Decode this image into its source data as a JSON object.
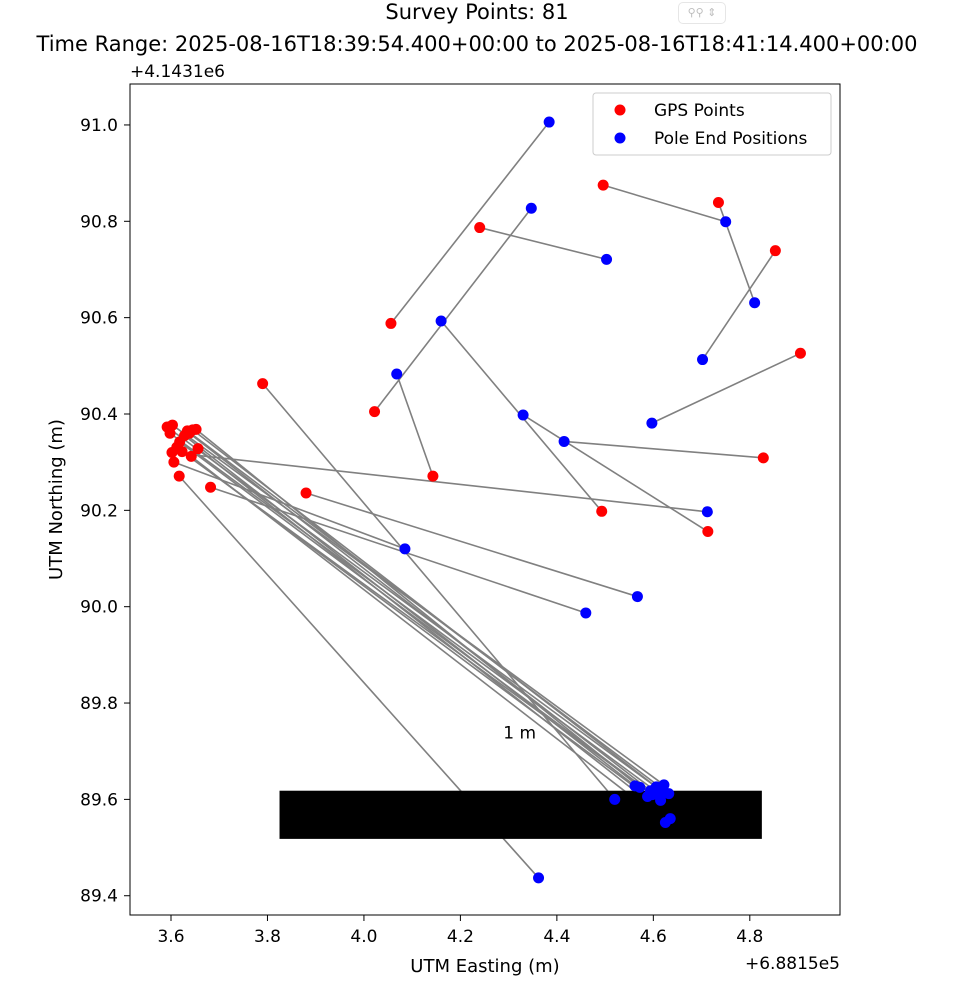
{
  "chart_data": {
    "type": "scatter",
    "title": "Survey Points: 81",
    "subtitle": "Time Range: 2025-08-16T18:39:54.400+00:00 to 2025-08-16T18:41:14.400+00:00",
    "xlabel": "UTM Easting (m)",
    "ylabel": "UTM Northing (m)",
    "x_offset_label": "+6.8815e5",
    "y_offset_label": "+4.1431e6",
    "xlim": [
      3.515,
      4.987
    ],
    "ylim": [
      89.36,
      91.085
    ],
    "xticks": [
      "3.6",
      "3.8",
      "4.0",
      "4.2",
      "4.4",
      "4.6",
      "4.8"
    ],
    "yticks": [
      "89.4",
      "89.6",
      "89.8",
      "90.0",
      "90.2",
      "90.4",
      "90.6",
      "90.8",
      "91.0"
    ],
    "legend_position": "top-right",
    "scale_bar_label": "1 m",
    "scale_bar": {
      "x": [
        3.825,
        4.825
      ],
      "y": [
        89.518,
        89.618
      ]
    },
    "colors": {
      "gps": "#ff0000",
      "pole": "#0000ff",
      "line": "#808080",
      "scale_bar": "#000000"
    },
    "series": [
      {
        "name": "GPS Points",
        "color": "#ff0000"
      },
      {
        "name": "Pole End Positions",
        "color": "#0000ff"
      }
    ],
    "pairs": [
      {
        "gps": [
          4.056,
          90.588
        ],
        "pole": [
          4.384,
          91.006
        ]
      },
      {
        "gps": [
          4.24,
          90.787
        ],
        "pole": [
          4.503,
          90.721
        ]
      },
      {
        "gps": [
          4.022,
          90.405
        ],
        "pole": [
          4.347,
          90.827
        ]
      },
      {
        "gps": [
          4.496,
          90.875
        ],
        "pole": [
          4.75,
          90.799
        ]
      },
      {
        "gps": [
          4.735,
          90.839
        ],
        "pole": [
          4.81,
          90.631
        ]
      },
      {
        "gps": [
          4.853,
          90.739
        ],
        "pole": [
          4.702,
          90.513
        ]
      },
      {
        "gps": [
          4.905,
          90.526
        ],
        "pole": [
          4.597,
          90.381
        ]
      },
      {
        "gps": [
          4.143,
          90.271
        ],
        "pole": [
          4.068,
          90.483
        ]
      },
      {
        "gps": [
          4.493,
          90.198
        ],
        "pole": [
          4.16,
          90.593
        ]
      },
      {
        "gps": [
          4.713,
          90.156
        ],
        "pole": [
          4.33,
          90.398
        ]
      },
      {
        "gps": [
          4.828,
          90.309
        ],
        "pole": [
          4.415,
          90.343
        ]
      },
      {
        "gps": [
          3.79,
          90.463
        ],
        "pole": [
          4.52,
          89.6
        ]
      },
      {
        "gps": [
          3.88,
          90.236
        ],
        "pole": [
          4.567,
          90.021
        ]
      },
      {
        "gps": [
          3.682,
          90.248
        ],
        "pole": [
          4.46,
          89.987
        ]
      },
      {
        "gps": [
          3.602,
          90.32
        ],
        "pole": [
          4.712,
          90.197
        ]
      },
      {
        "gps": [
          3.617,
          90.271
        ],
        "pole": [
          4.362,
          89.437
        ]
      },
      {
        "gps": [
          3.606,
          90.3
        ],
        "pole": [
          4.085,
          90.12
        ]
      },
      {
        "gps": [
          3.592,
          90.373
        ],
        "pole": [
          4.62,
          89.615
        ]
      },
      {
        "gps": [
          3.598,
          90.36
        ],
        "pole": [
          4.612,
          89.612
        ]
      },
      {
        "gps": [
          3.603,
          90.377
        ],
        "pole": [
          4.622,
          89.63
        ]
      },
      {
        "gps": [
          3.623,
          90.322
        ],
        "pole": [
          4.598,
          89.61
        ]
      },
      {
        "gps": [
          3.634,
          90.365
        ],
        "pole": [
          4.632,
          89.612
        ]
      },
      {
        "gps": [
          3.642,
          90.312
        ],
        "pole": [
          4.625,
          89.552
        ]
      },
      {
        "gps": [
          3.652,
          90.368
        ],
        "pole": [
          4.572,
          89.625
        ]
      },
      {
        "gps": [
          3.656,
          90.328
        ],
        "pole": [
          4.635,
          89.56
        ]
      },
      {
        "gps": [
          3.645,
          90.367
        ],
        "pole": [
          4.606,
          89.626
        ]
      },
      {
        "gps": [
          3.612,
          90.331
        ],
        "pole": [
          4.588,
          89.606
        ]
      },
      {
        "gps": [
          3.628,
          90.355
        ],
        "pole": [
          4.562,
          89.628
        ]
      },
      {
        "gps": [
          3.638,
          90.36
        ],
        "pole": [
          4.594,
          89.618
        ]
      },
      {
        "gps": [
          3.618,
          90.342
        ],
        "pole": [
          4.615,
          89.598
        ]
      }
    ]
  }
}
